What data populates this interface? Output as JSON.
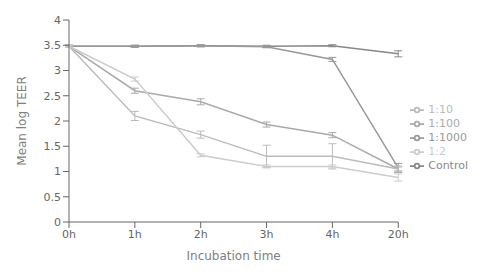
{
  "chart_data": {
    "type": "line",
    "xlabel": "Incubation time",
    "ylabel": "Mean log TEER",
    "categories": [
      "0h",
      "1h",
      "2h",
      "3h",
      "4h",
      "20h"
    ],
    "series": [
      {
        "name": "Control",
        "color": "#888888",
        "values": [
          3.48,
          3.48,
          3.49,
          3.48,
          3.49,
          3.33
        ],
        "yerr": [
          0.02,
          0.02,
          0.02,
          0.02,
          0.02,
          0.06
        ]
      },
      {
        "name": "1:1000",
        "color": "#999999",
        "values": [
          3.48,
          3.48,
          3.49,
          3.47,
          3.22,
          1.07
        ],
        "yerr": [
          0.02,
          0.02,
          0.02,
          0.02,
          0.04,
          0.09
        ]
      },
      {
        "name": "1:100",
        "color": "#aaaaaa",
        "values": [
          3.48,
          2.6,
          2.38,
          1.93,
          1.72,
          1.05
        ],
        "yerr": [
          0.02,
          0.05,
          0.06,
          0.05,
          0.05,
          0.04
        ]
      },
      {
        "name": "1:10",
        "color": "#bbbbbb",
        "values": [
          3.48,
          2.1,
          1.73,
          1.3,
          1.3,
          1.05
        ],
        "yerr": [
          0.02,
          0.09,
          0.07,
          0.22,
          0.25,
          0.06
        ]
      },
      {
        "name": "1:2",
        "color": "#cccccc",
        "values": [
          3.48,
          2.83,
          1.32,
          1.1,
          1.1,
          0.88
        ],
        "yerr": [
          0.02,
          0.04,
          0.03,
          0.03,
          0.03,
          0.07
        ]
      }
    ],
    "ylim": [
      0,
      4
    ],
    "yticks": [
      0,
      0.5,
      1,
      1.5,
      2,
      2.5,
      3,
      3.5,
      4
    ],
    "grid": false,
    "legend": "right",
    "marker": "none",
    "line_style": "solid"
  }
}
